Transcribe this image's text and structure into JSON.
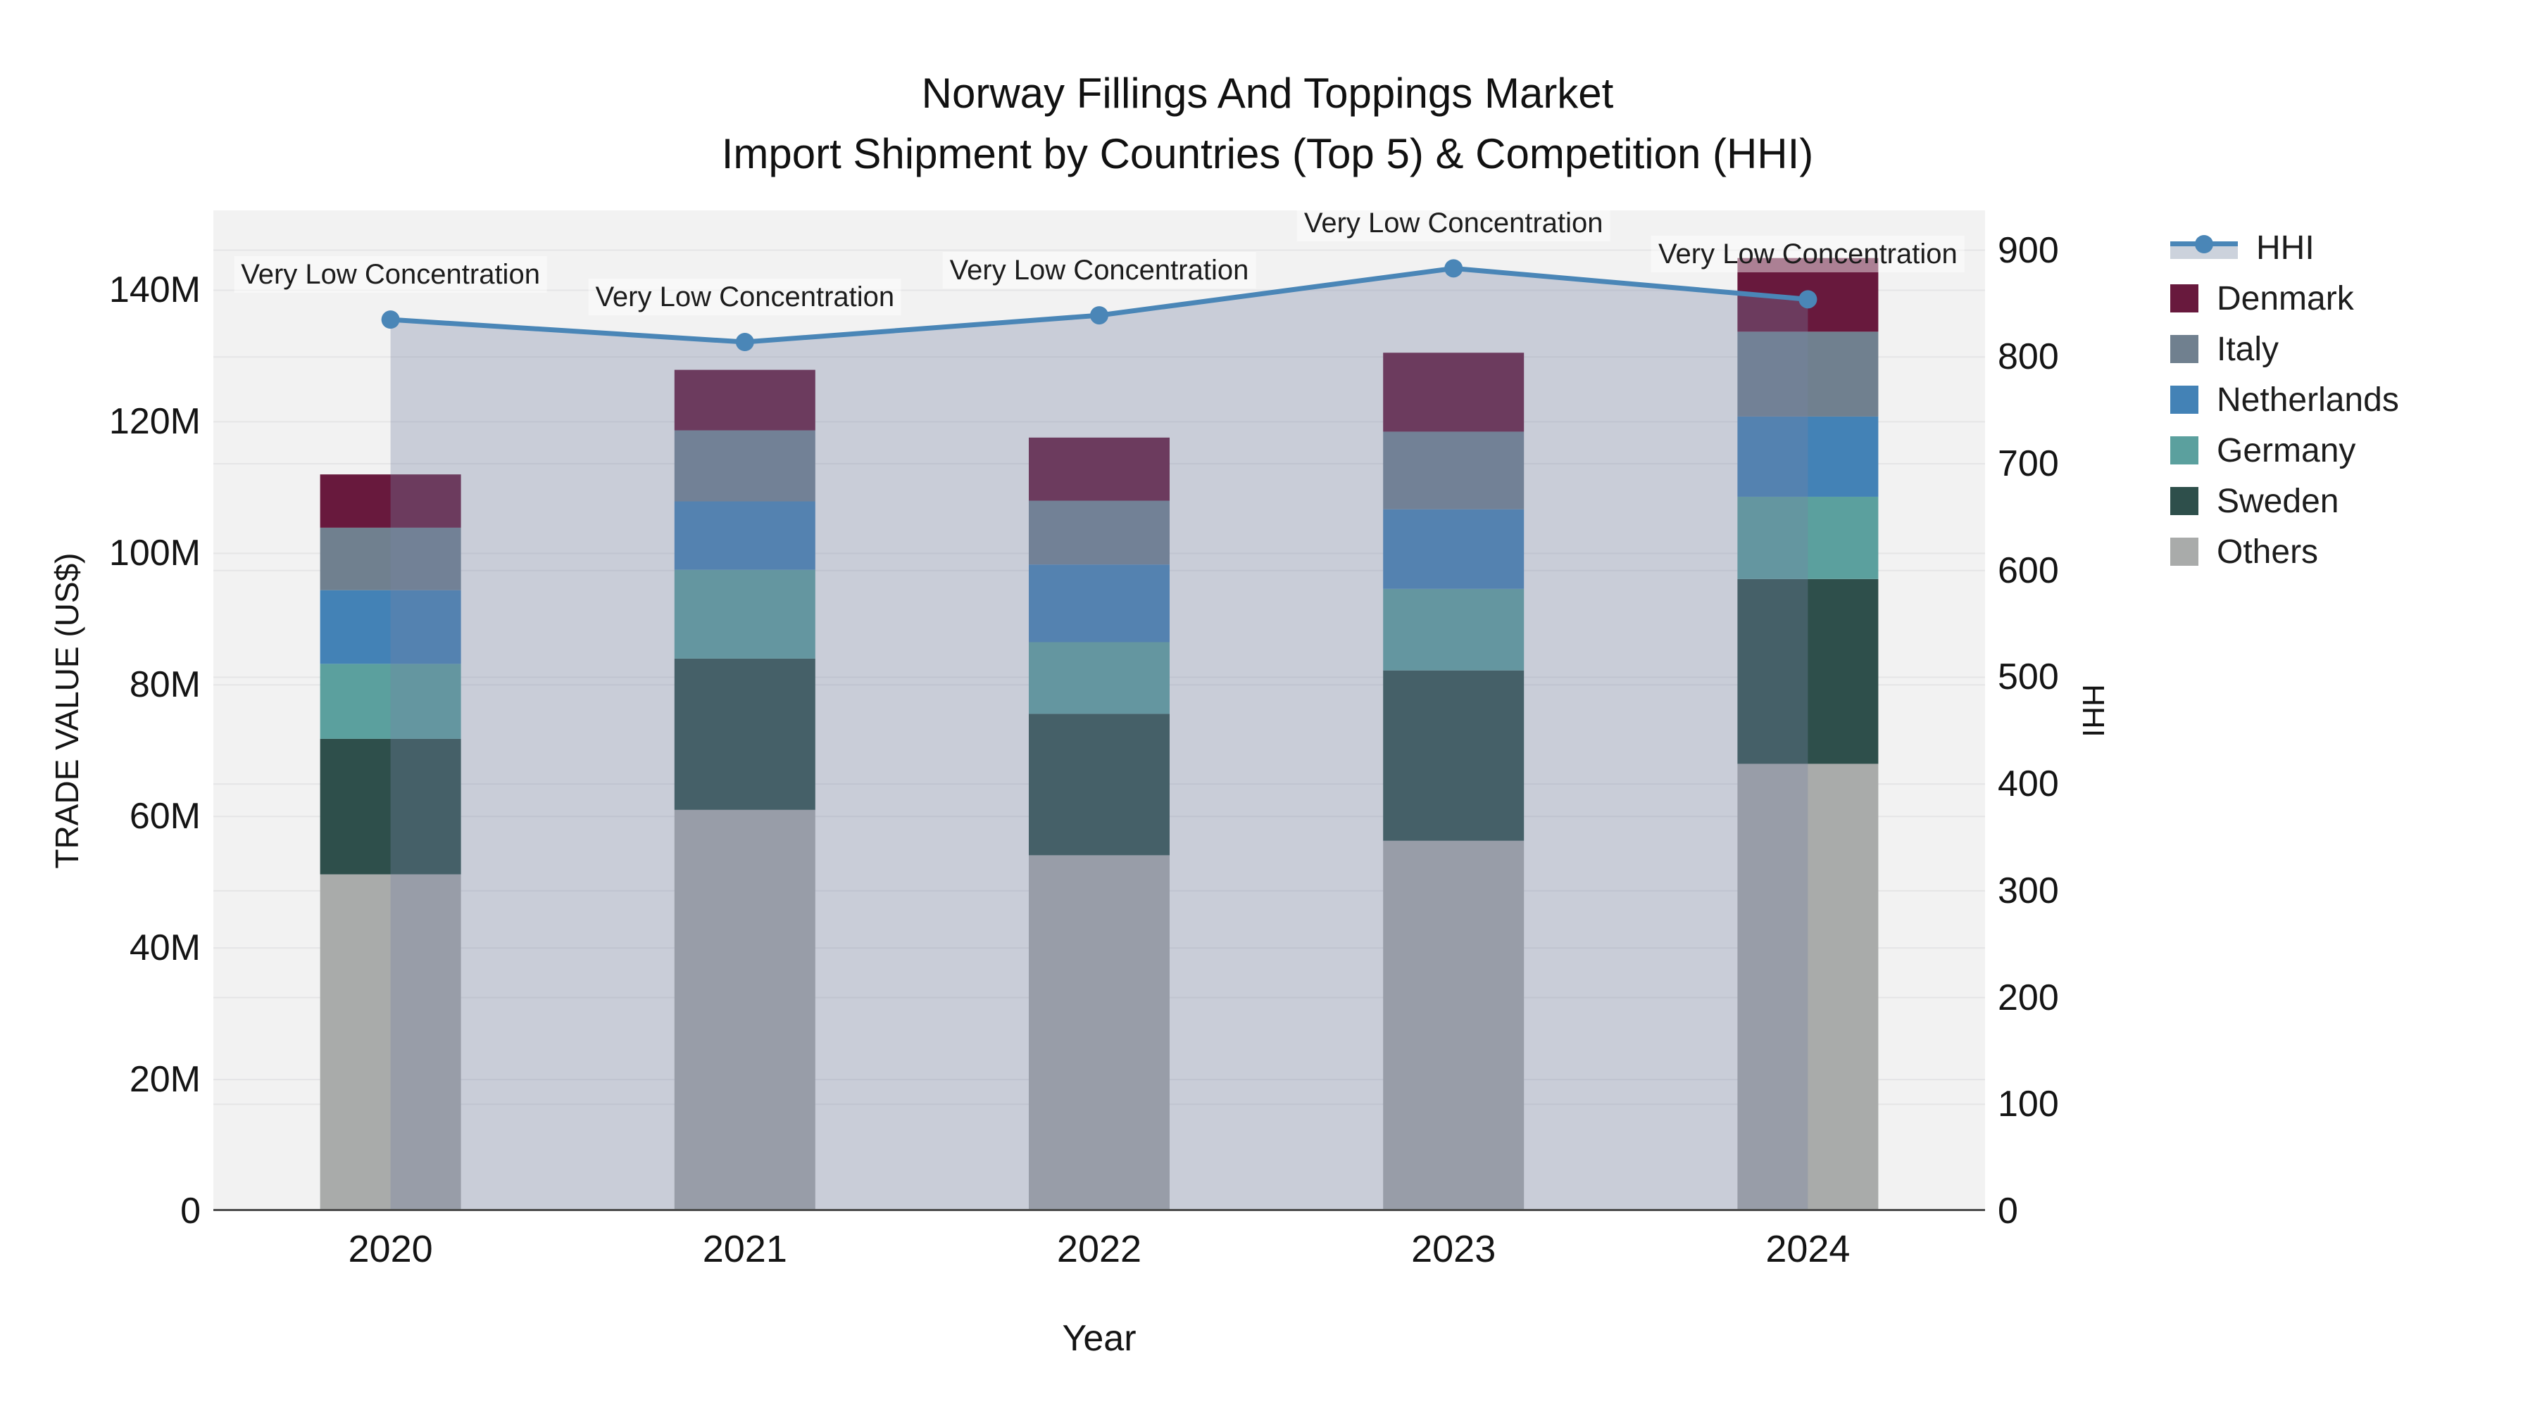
{
  "title": {
    "line1": "Norway Fillings And Toppings Market",
    "line2": "Import Shipment by Countries (Top 5) & Competition (HHI)"
  },
  "axes": {
    "y_left": {
      "title": "TRADE VALUE (US$)",
      "tick_labels": [
        "0",
        "20M",
        "40M",
        "60M",
        "80M",
        "100M",
        "120M",
        "140M"
      ],
      "tick_values": [
        0,
        20,
        40,
        60,
        80,
        100,
        120,
        140
      ]
    },
    "y_right": {
      "title": "HHI",
      "tick_labels": [
        "0",
        "100",
        "200",
        "300",
        "400",
        "500",
        "600",
        "700",
        "800",
        "900"
      ],
      "tick_values": [
        0,
        100,
        200,
        300,
        400,
        500,
        600,
        700,
        800,
        900
      ]
    },
    "x": {
      "title": "Year",
      "categories": [
        "2020",
        "2021",
        "2022",
        "2023",
        "2024"
      ]
    }
  },
  "legend": {
    "items": [
      {
        "label": "HHI",
        "type": "line"
      },
      {
        "label": "Denmark",
        "type": "square",
        "color": "#68193d"
      },
      {
        "label": "Italy",
        "type": "square",
        "color": "#70808f"
      },
      {
        "label": "Netherlands",
        "type": "square",
        "color": "#4382b6"
      },
      {
        "label": "Germany",
        "type": "square",
        "color": "#5ba09e"
      },
      {
        "label": "Sweden",
        "type": "square",
        "color": "#2e4f4b"
      },
      {
        "label": "Others",
        "type": "square",
        "color": "#a9abaa"
      }
    ]
  },
  "colors": {
    "denmark": "#68193d",
    "italy": "#70808f",
    "netherlands": "#4382b6",
    "germany": "#5ba09e",
    "sweden": "#2e4f4b",
    "others": "#a9abaa",
    "hhi_line": "#4a86b7",
    "hhi_fill": "rgba(119,132,164,0.33)",
    "plot_bg": "#f2f2f2",
    "gridline": "#e5e5e6",
    "axis_line": "#4a4a4a"
  },
  "chart_data": {
    "type": "combo-stacked-bar-line",
    "categories": [
      "2020",
      "2021",
      "2022",
      "2023",
      "2024"
    ],
    "bar_value_unit": "M US$ trade value",
    "stack_order_bottom_to_top": [
      "Others",
      "Sweden",
      "Germany",
      "Netherlands",
      "Italy",
      "Denmark"
    ],
    "series": [
      {
        "name": "Denmark",
        "values": [
          8.1,
          9.2,
          9.6,
          12.0,
          11.2
        ]
      },
      {
        "name": "Italy",
        "values": [
          9.5,
          10.8,
          9.7,
          11.8,
          12.9
        ]
      },
      {
        "name": "Netherlands",
        "values": [
          11.2,
          10.4,
          11.8,
          12.1,
          12.2
        ]
      },
      {
        "name": "Germany",
        "values": [
          11.4,
          13.5,
          10.9,
          12.4,
          12.5
        ]
      },
      {
        "name": "Sweden",
        "values": [
          20.6,
          23.0,
          21.5,
          25.9,
          28.1
        ]
      },
      {
        "name": "Others",
        "values": [
          51.2,
          61.0,
          54.1,
          56.3,
          68.0
        ]
      }
    ],
    "bar_totals": [
      112.0,
      127.9,
      117.6,
      130.5,
      144.9
    ],
    "line_series": {
      "name": "HHI",
      "axis": "right",
      "values": [
        835,
        814,
        839,
        883,
        854
      ],
      "area_fill_to_zero": true
    },
    "point_annotations": [
      "Very Low Concentration",
      "Very Low Concentration",
      "Very Low Concentration",
      "Very Low Concentration",
      "Very Low Concentration"
    ],
    "xlabel": "Year",
    "ylabel_left": "TRADE VALUE (US$)",
    "ylabel_right": "HHI",
    "ylim_left": [
      0,
      152
    ],
    "ylim_right": [
      0,
      937
    ],
    "grid": "both-y-axes",
    "legend_position": "right"
  }
}
